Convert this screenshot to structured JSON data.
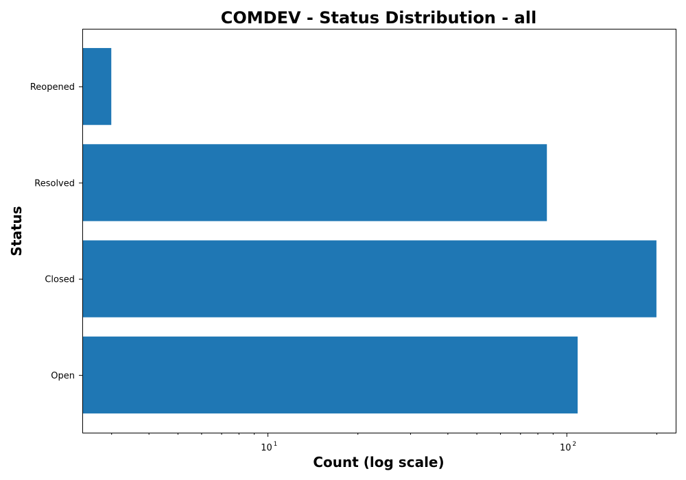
{
  "chart_data": {
    "type": "bar",
    "orientation": "horizontal",
    "title": "COMDEV - Status Distribution - all",
    "xlabel": "Count (log scale)",
    "ylabel": "Status",
    "x_scale": "log",
    "xlim": [
      2.4,
      232
    ],
    "categories": [
      "Open",
      "Closed",
      "Resolved",
      "Reopened"
    ],
    "values": [
      109,
      200,
      86,
      3
    ],
    "x_major_ticks": [
      {
        "value": 10,
        "base": "10",
        "exponent": "1"
      },
      {
        "value": 100,
        "base": "10",
        "exponent": "2"
      }
    ],
    "bar_color": "#1f77b4",
    "grid": false,
    "legend": "none"
  }
}
